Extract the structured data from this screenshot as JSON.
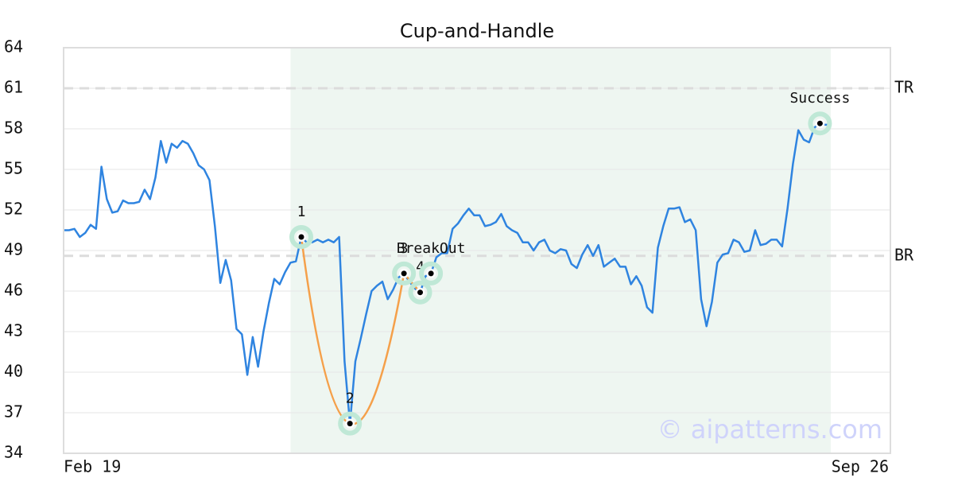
{
  "chart_data": {
    "type": "line",
    "title": "Cup-and-Handle",
    "categories": [
      "Feb 19",
      null,
      null,
      null,
      null,
      null,
      null,
      null,
      null,
      null,
      null,
      null,
      null,
      null,
      null,
      null,
      null,
      null,
      null,
      null,
      null,
      null,
      null,
      null,
      null,
      null,
      null,
      null,
      null,
      null,
      null,
      null,
      null,
      null,
      null,
      null,
      null,
      null,
      null,
      null,
      null,
      null,
      null,
      null,
      null,
      null,
      null,
      null,
      null,
      null,
      null,
      null,
      null,
      null,
      null,
      null,
      null,
      null,
      null,
      null,
      null,
      null,
      null,
      null,
      null,
      null,
      null,
      null,
      null,
      null,
      null,
      null,
      null,
      null,
      null,
      null,
      null,
      null,
      null,
      null,
      null,
      null,
      null,
      null,
      null,
      null,
      null,
      null,
      null,
      null,
      null,
      null,
      null,
      null,
      null,
      null,
      null,
      null,
      null,
      null,
      null,
      null,
      null,
      null,
      null,
      null,
      null,
      null,
      null,
      null,
      null,
      null,
      null,
      null,
      null,
      null,
      null,
      null,
      null,
      null,
      null,
      null,
      null,
      null,
      null,
      null,
      null,
      null,
      null,
      null,
      null,
      null,
      null,
      null,
      null,
      null,
      null,
      null,
      null,
      null,
      null,
      null,
      "Sep 26"
    ],
    "values": [
      50.5,
      50.5,
      50.6,
      50.0,
      50.3,
      50.9,
      50.6,
      55.2,
      52.8,
      51.8,
      51.9,
      52.7,
      52.5,
      52.5,
      52.6,
      53.5,
      52.8,
      54.4,
      57.1,
      55.5,
      56.9,
      56.6,
      57.1,
      56.9,
      56.2,
      55.3,
      55.0,
      54.2,
      50.8,
      46.6,
      48.3,
      46.8,
      43.2,
      42.8,
      39.8,
      42.6,
      40.4,
      43.0,
      45.1,
      46.9,
      46.5,
      47.4,
      48.1,
      48.2,
      50.0,
      49.6,
      49.6,
      49.8,
      49.6,
      49.8,
      49.6,
      50.0,
      40.8,
      36.2,
      40.8,
      42.5,
      44.3,
      46.0,
      46.4,
      46.7,
      45.4,
      46.1,
      47.0,
      47.3,
      46.7,
      46.2,
      45.9,
      47.1,
      47.3,
      48.5,
      48.8,
      48.8,
      50.6,
      51.0,
      51.6,
      52.1,
      51.6,
      51.6,
      50.8,
      50.9,
      51.1,
      51.7,
      50.8,
      50.5,
      50.3,
      49.6,
      49.6,
      49.0,
      49.6,
      49.8,
      49.0,
      48.8,
      49.1,
      49.0,
      48.0,
      47.7,
      48.7,
      49.4,
      48.6,
      49.4,
      47.8,
      48.1,
      48.4,
      47.8,
      47.8,
      46.5,
      47.1,
      46.4,
      44.8,
      44.4,
      49.2,
      50.8,
      52.1,
      52.1,
      52.2,
      51.1,
      51.3,
      50.5,
      45.4,
      43.4,
      45.2,
      48.1,
      48.7,
      48.8,
      49.8,
      49.6,
      48.9,
      49.0,
      50.5,
      49.4,
      49.5,
      49.8,
      49.8,
      49.3,
      52.1,
      55.4,
      57.9,
      57.2,
      57.0,
      58.1,
      58.4,
      58.3,
      58.3
    ],
    "color": "#2f84e0",
    "ylim": [
      34,
      64
    ],
    "yticks": [
      34,
      37,
      40,
      43,
      46,
      49,
      52,
      55,
      58,
      61,
      64
    ],
    "grid": true,
    "highlight": {
      "start": 42,
      "end": 142,
      "color": "#eef6f1"
    },
    "reference_lines": [
      {
        "label": "TR",
        "value": 61
      },
      {
        "label": "BR",
        "value": 48.6
      }
    ],
    "pattern_color": "#f5a04a",
    "annotations": [
      {
        "label": "1",
        "x": 44,
        "value": 50.0
      },
      {
        "label": "2",
        "x": 53,
        "value": 36.2
      },
      {
        "label": "3",
        "x": 63,
        "value": 47.3
      },
      {
        "label": "4",
        "x": 66,
        "value": 45.9
      },
      {
        "label": "BreakOut",
        "x": 68,
        "value": 47.3
      },
      {
        "label": "Success",
        "x": 140,
        "value": 58.4
      }
    ],
    "watermark": "© aipatterns.com"
  }
}
